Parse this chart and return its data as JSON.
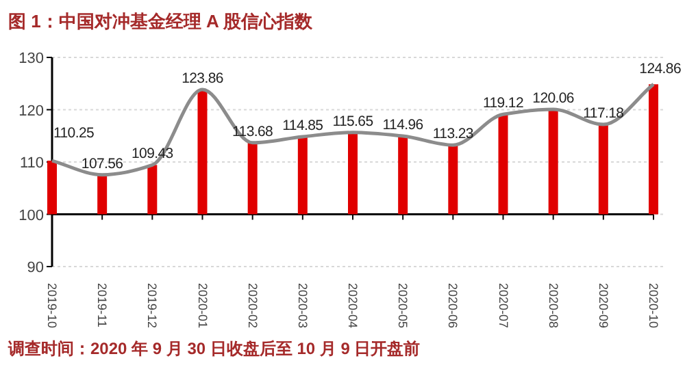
{
  "chart_data": {
    "type": "bar",
    "title": "图 1：中国对冲基金经理 A 股信心指数",
    "categories": [
      "2019-10",
      "2019-11",
      "2019-12",
      "2020-01",
      "2020-02",
      "2020-03",
      "2020-04",
      "2020-05",
      "2020-06",
      "2020-07",
      "2020-08",
      "2020-09",
      "2020-10"
    ],
    "series": [
      {
        "type": "bar",
        "color": "#e00000",
        "base": [
          100,
          100,
          100,
          100,
          100,
          100,
          100,
          100,
          100,
          100,
          100,
          100,
          100
        ],
        "values": [
          10.25,
          7.56,
          9.43,
          23.86,
          13.68,
          14.85,
          15.65,
          14.96,
          13.23,
          19.12,
          20.06,
          17.18,
          24.86
        ]
      },
      {
        "type": "line",
        "color": "#8c8c8c",
        "values": [
          110.25,
          107.56,
          109.43,
          123.86,
          113.68,
          114.85,
          115.65,
          114.96,
          113.23,
          119.12,
          120.06,
          117.18,
          124.86
        ],
        "value_labels": [
          "110.25",
          "107.56",
          "109.43",
          "123.86",
          "113.68",
          "114.85",
          "115.65",
          "114.96",
          "113.23",
          "119.12",
          "120.06",
          "117.18",
          "124.86"
        ]
      }
    ],
    "ylim": [
      90,
      130
    ],
    "yticks": [
      90,
      100,
      110,
      120,
      130
    ],
    "grid": "y",
    "ref_lines": [
      {
        "axis": "y",
        "value": 100,
        "color": "#000000"
      }
    ],
    "annotations": [
      "调查时间：2020 年 9 月 30 日收盘后至 10 月 9 日开盘前"
    ]
  }
}
